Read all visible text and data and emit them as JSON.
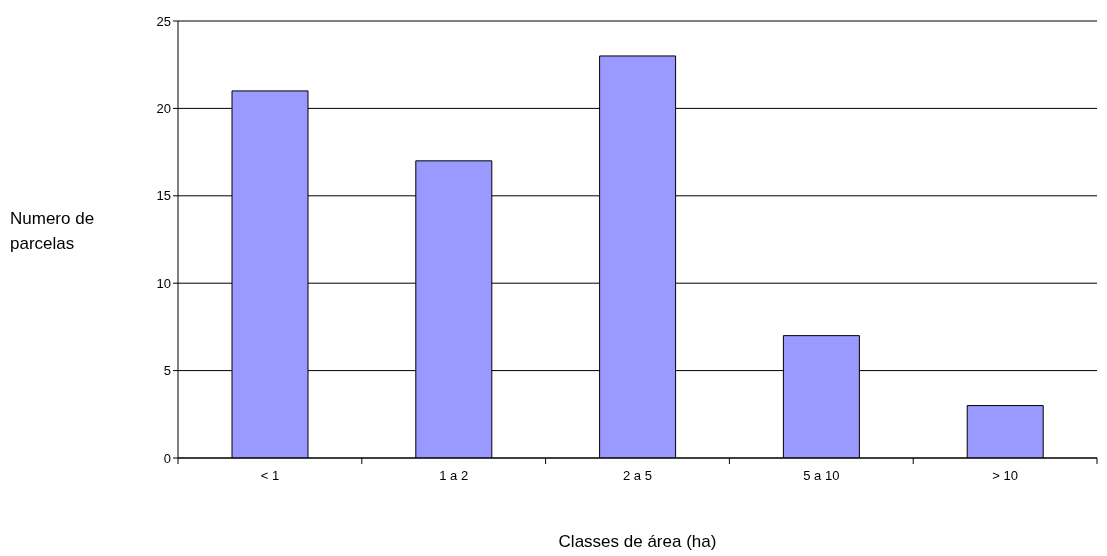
{
  "chart_data": {
    "type": "bar",
    "xlabel": "Classes de área (ha)",
    "ylabel": "Numero de parcelas",
    "categories": [
      "< 1",
      "1 a 2",
      "2 a 5",
      "5 a 10",
      "> 10"
    ],
    "values": [
      21,
      17,
      23,
      7,
      3
    ],
    "color": "#9999ff",
    "ylim": [
      0,
      25
    ],
    "yticks": [
      0,
      5,
      10,
      15,
      20,
      25
    ],
    "grid": "y"
  }
}
